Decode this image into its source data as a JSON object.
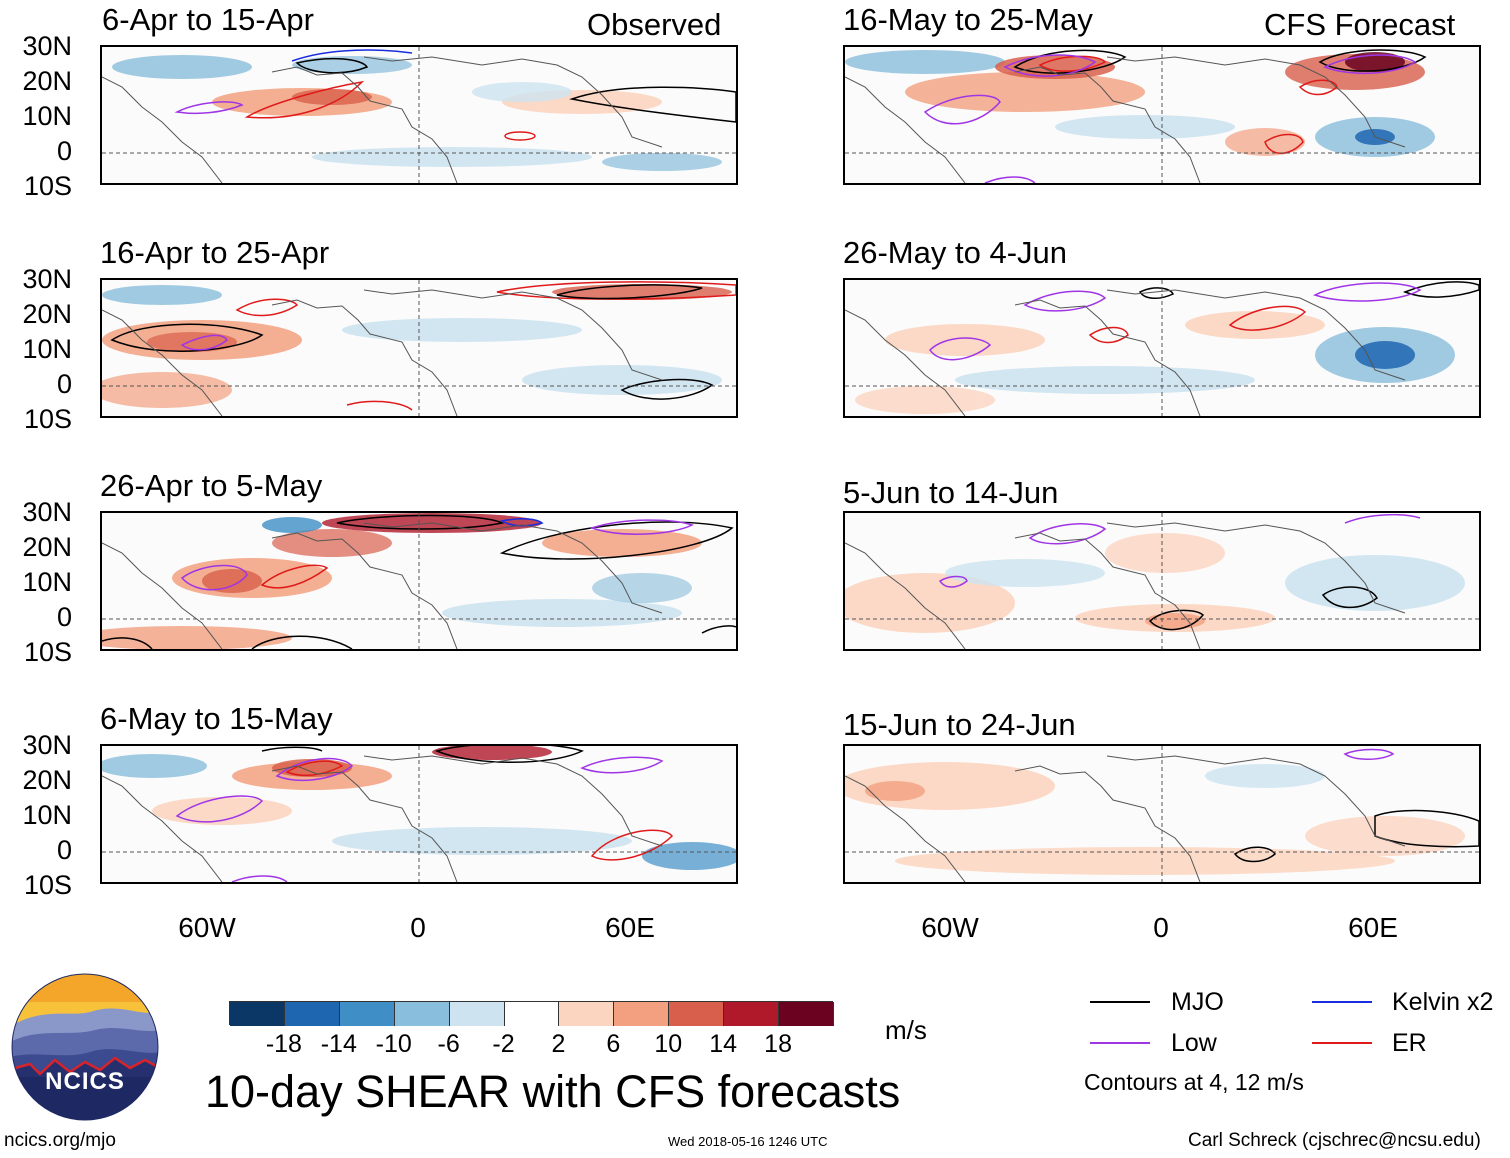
{
  "header": {
    "left_label": "Observed",
    "right_label": "CFS Forecast"
  },
  "panels_left": [
    {
      "title": "6-Apr to 15-Apr"
    },
    {
      "title": "16-Apr to 25-Apr"
    },
    {
      "title": "26-Apr to 5-May"
    },
    {
      "title": "6-May to 15-May"
    }
  ],
  "panels_right": [
    {
      "title": "16-May to 25-May"
    },
    {
      "title": "26-May to 4-Jun"
    },
    {
      "title": "5-Jun to 14-Jun"
    },
    {
      "title": "15-Jun to 24-Jun"
    }
  ],
  "lat_labels": [
    "30N",
    "20N",
    "10N",
    "0",
    "10S"
  ],
  "lon_labels": [
    "60W",
    "0",
    "60E"
  ],
  "colorbar": {
    "unit": "m/s",
    "labels": [
      "-18",
      "-14",
      "-10",
      "-6",
      "-2",
      "2",
      "6",
      "10",
      "14",
      "18"
    ],
    "colors": [
      "#0b3766",
      "#1f66b0",
      "#3f8fc6",
      "#89bedc",
      "#cde3f0",
      "#ffffff",
      "#fcd5c0",
      "#f2a07f",
      "#d85f4b",
      "#b0192a",
      "#6a0220"
    ]
  },
  "legend": {
    "items": [
      {
        "label": "MJO",
        "color": "#000000"
      },
      {
        "label": "Kelvin x2",
        "color": "#1a2de0"
      },
      {
        "label": "Low",
        "color": "#a035e6"
      },
      {
        "label": "ER",
        "color": "#e01a1a"
      }
    ],
    "note": "Contours at 4, 12 m/s"
  },
  "logo": {
    "text": "NCICS"
  },
  "main_title": "10-day SHEAR with CFS forecasts",
  "footer": {
    "url": "ncics.org/mjo",
    "timestamp": "Wed 2018-05-16 1246 UTC",
    "author": "Carl Schreck (cjschrec@ncsu.edu)"
  }
}
